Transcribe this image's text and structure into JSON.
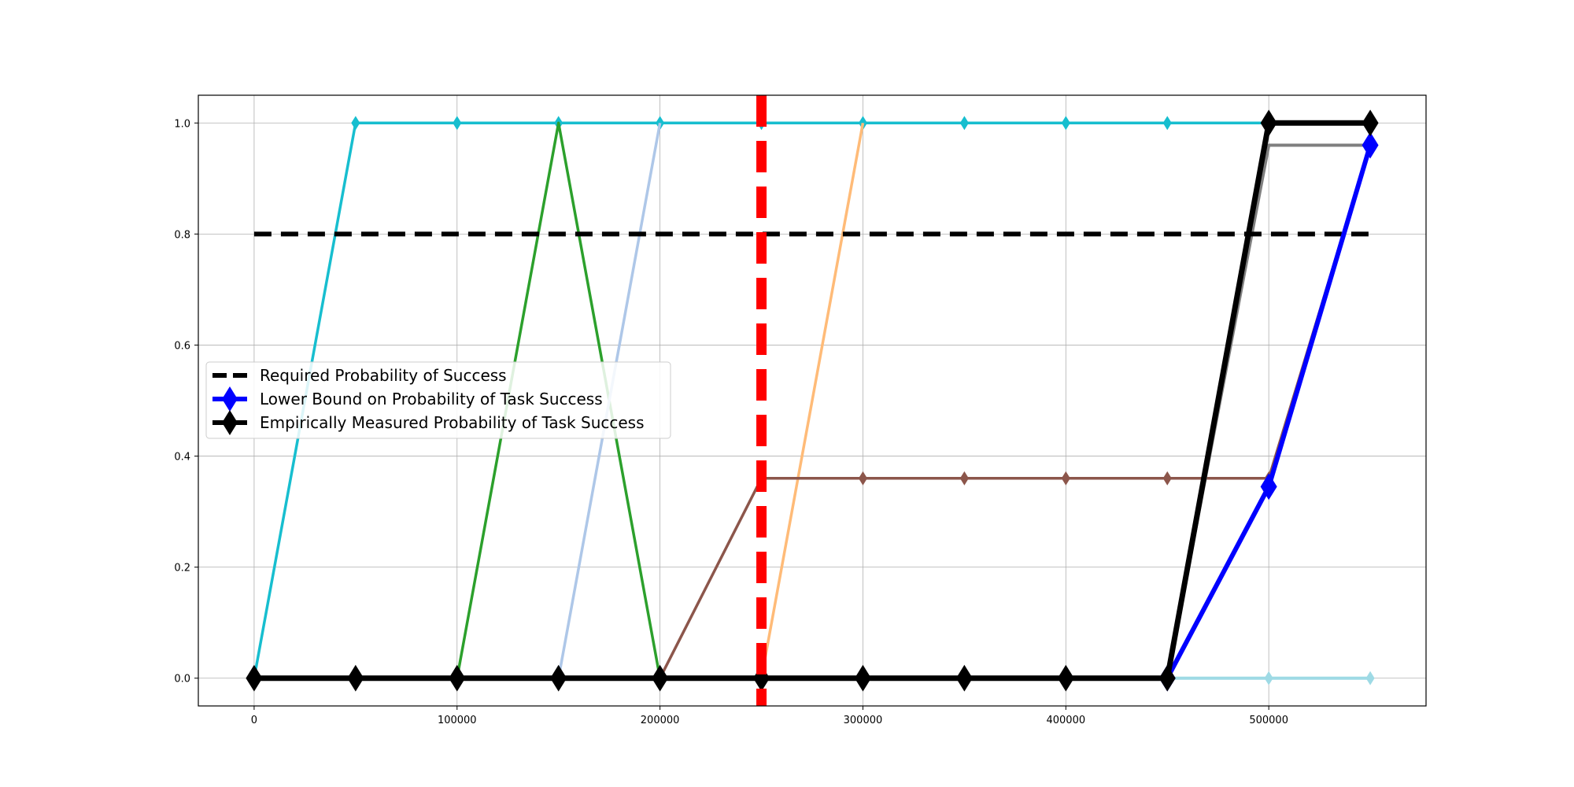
{
  "chart_data": {
    "type": "line",
    "title": "",
    "xlabel": "",
    "ylabel": "",
    "xlim": [
      -27500,
      577500
    ],
    "ylim": [
      -0.05,
      1.05
    ],
    "grid": true,
    "legend_placement": "center-left",
    "x_ticks": [
      0,
      100000,
      200000,
      300000,
      400000,
      500000
    ],
    "x_tick_labels": [
      "0",
      "100000",
      "200000",
      "300000",
      "400000",
      "500000"
    ],
    "y_ticks": [
      0.0,
      0.2,
      0.4,
      0.6,
      0.8,
      1.0
    ],
    "y_tick_labels": [
      "0.0",
      "0.2",
      "0.4",
      "0.6",
      "0.8",
      "1.0"
    ],
    "vertical_marker": {
      "x": 250000,
      "color": "#ff0000",
      "style": "dashed"
    },
    "series": [
      {
        "color": "#17becf",
        "width": 3.5,
        "marker_size": 8,
        "x": [
          0,
          50000,
          100000,
          150000,
          200000,
          250000,
          300000,
          350000,
          400000,
          450000,
          500000
        ],
        "y": [
          0,
          1,
          1,
          1,
          1,
          1,
          1,
          1,
          1,
          1,
          1
        ]
      },
      {
        "color": "#2ca02c",
        "width": 3.5,
        "marker_size": 0,
        "x": [
          100000,
          150000,
          200000
        ],
        "y": [
          0,
          1,
          0
        ]
      },
      {
        "color": "#aec7e8",
        "width": 3.5,
        "marker_size": 0,
        "x": [
          150000,
          200000
        ],
        "y": [
          0,
          1
        ]
      },
      {
        "color": "#ffbb78",
        "width": 3.5,
        "marker_size": 0,
        "x": [
          250000,
          300000
        ],
        "y": [
          0,
          1
        ]
      },
      {
        "color": "#8c564b",
        "width": 3.5,
        "marker_size": 8,
        "x": [
          200000,
          250000,
          300000,
          350000,
          400000,
          450000,
          500000,
          550000
        ],
        "y": [
          0,
          0.36,
          0.36,
          0.36,
          0.36,
          0.36,
          0.36,
          0.96
        ]
      },
      {
        "color": "#9edae5",
        "width": 4,
        "marker_size": 8,
        "x": [
          450000,
          500000,
          550000
        ],
        "y": [
          0,
          0,
          0
        ]
      },
      {
        "color": "#7f7f7f",
        "width": 4,
        "marker_size": 0,
        "x": [
          450000,
          500000,
          550000
        ],
        "y": [
          0,
          0.96,
          0.96
        ]
      },
      {
        "name": "Required Probability of Success",
        "color": "#000000",
        "width": 6,
        "dash": true,
        "marker_size": 0,
        "x": [
          0,
          550000
        ],
        "y": [
          0.8,
          0.8
        ]
      },
      {
        "name": "Lower Bound on Probability of Task Success",
        "color": "#0000ff",
        "width": 6,
        "marker_size": 16,
        "x": [
          450000,
          500000,
          550000
        ],
        "y": [
          0,
          0.345,
          0.96
        ]
      },
      {
        "name": "Empirically Measured Probability of Task Success",
        "color": "#000000",
        "width": 7,
        "marker_size": 16,
        "x": [
          0,
          50000,
          100000,
          150000,
          200000,
          250000,
          300000,
          350000,
          400000,
          450000,
          500000,
          550000
        ],
        "y": [
          0,
          0,
          0,
          0,
          0,
          0,
          0,
          0,
          0,
          0,
          1,
          1
        ]
      }
    ],
    "legend": [
      {
        "label": "Required Probability of Success",
        "color": "#000000",
        "dash": true
      },
      {
        "label": "Lower Bound on Probability of Task Success",
        "color": "#0000ff",
        "dash": false
      },
      {
        "label": "Empirically Measured Probability of Task Success",
        "color": "#000000",
        "dash": false
      }
    ]
  }
}
